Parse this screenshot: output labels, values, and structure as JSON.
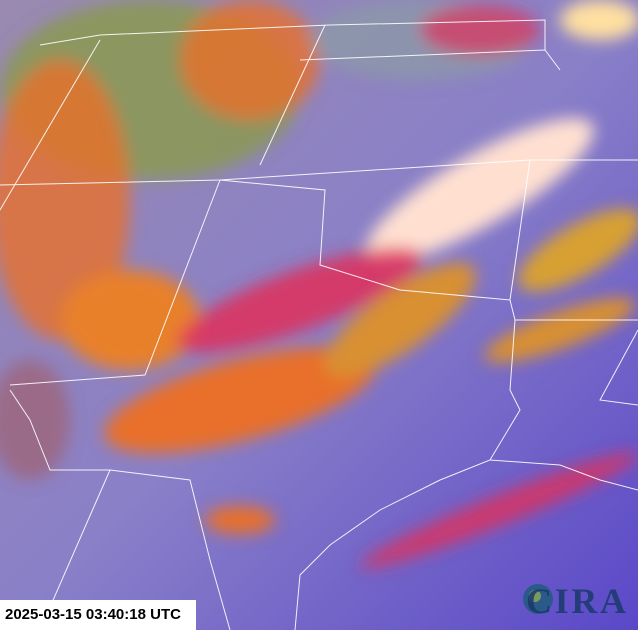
{
  "timestamp": "2025-03-15 03:40:18 UTC",
  "logo": {
    "text": "CIRA"
  },
  "colors": {
    "clear_sky": "#6a62c8",
    "high_cloud_orange": "#e8702a",
    "cloud_red": "#e0305a",
    "dust_white": "#ffe0d0",
    "land_green": "#8a9a4a",
    "border": "#ffffff"
  }
}
